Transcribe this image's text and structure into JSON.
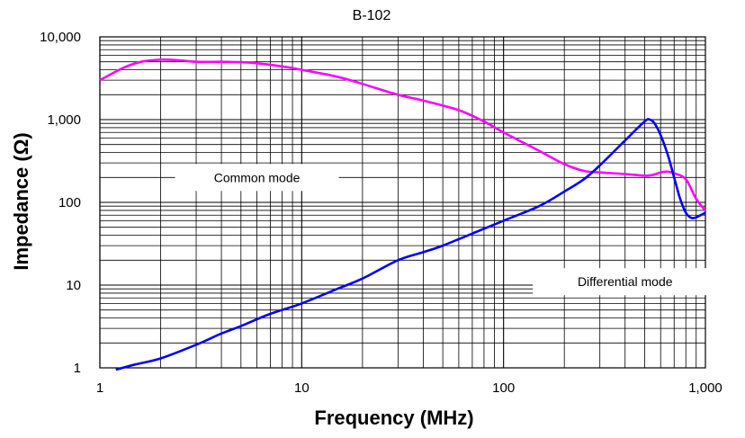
{
  "chart_data": {
    "type": "line",
    "title": "B-102",
    "xlabel": "Frequency (MHz)",
    "ylabel": "Impedance (Ω)",
    "x_scale": "log",
    "y_scale": "log",
    "xlim": [
      1,
      1000
    ],
    "ylim": [
      1,
      10000
    ],
    "grid": true,
    "x_ticks": [
      {
        "value": 1,
        "label": "1"
      },
      {
        "value": 10,
        "label": "10"
      },
      {
        "value": 100,
        "label": "100"
      },
      {
        "value": 1000,
        "label": "1,000"
      }
    ],
    "y_ticks": [
      {
        "value": 1,
        "label": "1"
      },
      {
        "value": 10,
        "label": "10"
      },
      {
        "value": 100,
        "label": "100"
      },
      {
        "value": 1000,
        "label": "1,000"
      },
      {
        "value": 10000,
        "label": "10,000"
      }
    ],
    "annotations": [
      {
        "text": "Common mode",
        "x": 6,
        "y": 200
      },
      {
        "text": "Differential mode",
        "x": 400,
        "y": 11
      }
    ],
    "series": [
      {
        "name": "Common mode",
        "color": "#ff00ff",
        "points": [
          [
            1,
            3000
          ],
          [
            1.3,
            4200
          ],
          [
            1.6,
            5000
          ],
          [
            2,
            5300
          ],
          [
            2.5,
            5200
          ],
          [
            3,
            5000
          ],
          [
            4,
            5000
          ],
          [
            5,
            4950
          ],
          [
            6,
            4800
          ],
          [
            8,
            4400
          ],
          [
            10,
            4000
          ],
          [
            15,
            3300
          ],
          [
            20,
            2700
          ],
          [
            30,
            2000
          ],
          [
            40,
            1700
          ],
          [
            60,
            1300
          ],
          [
            80,
            950
          ],
          [
            100,
            700
          ],
          [
            150,
            420
          ],
          [
            200,
            290
          ],
          [
            250,
            240
          ],
          [
            300,
            230
          ],
          [
            400,
            220
          ],
          [
            500,
            210
          ],
          [
            550,
            215
          ],
          [
            600,
            230
          ],
          [
            650,
            235
          ],
          [
            700,
            225
          ],
          [
            800,
            190
          ],
          [
            900,
            110
          ],
          [
            1000,
            80
          ]
        ]
      },
      {
        "name": "Differential mode",
        "color": "#0000ff",
        "points": [
          [
            1.2,
            0.95
          ],
          [
            1.5,
            1.1
          ],
          [
            2,
            1.3
          ],
          [
            3,
            1.9
          ],
          [
            4,
            2.6
          ],
          [
            5,
            3.2
          ],
          [
            7,
            4.5
          ],
          [
            10,
            6
          ],
          [
            15,
            9
          ],
          [
            20,
            12
          ],
          [
            30,
            20
          ],
          [
            40,
            25
          ],
          [
            50,
            30
          ],
          [
            70,
            42
          ],
          [
            100,
            60
          ],
          [
            150,
            90
          ],
          [
            200,
            135
          ],
          [
            250,
            190
          ],
          [
            300,
            280
          ],
          [
            400,
            560
          ],
          [
            500,
            950
          ],
          [
            530,
            1000
          ],
          [
            560,
            900
          ],
          [
            600,
            650
          ],
          [
            650,
            380
          ],
          [
            700,
            200
          ],
          [
            750,
            110
          ],
          [
            800,
            75
          ],
          [
            850,
            65
          ],
          [
            900,
            66
          ],
          [
            1000,
            75
          ]
        ]
      }
    ]
  }
}
